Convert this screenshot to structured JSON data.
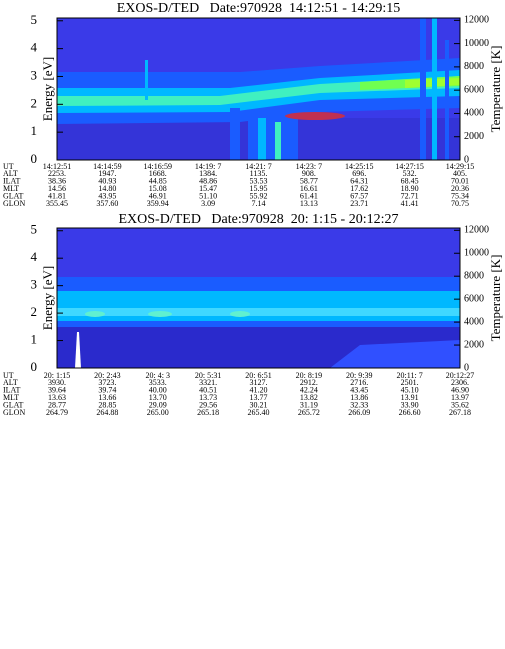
{
  "chart_data": [
    {
      "type": "spectrogram",
      "title": "EXOS-D/TED   Date:970928  14:12:51 - 14:29:15",
      "ylabel": "Energy [eV]",
      "y2label": "Temperature [K]",
      "ylim": [
        0,
        5.1
      ],
      "yticks": [
        0,
        1,
        2,
        3,
        4,
        5
      ],
      "y2lim": [
        0,
        12200
      ],
      "y2ticks": [
        0,
        2000,
        4000,
        6000,
        8000,
        10000,
        12000
      ],
      "table": {
        "row_labels": [
          "UT",
          "ALT",
          "ILAT",
          "MLT",
          "GLAT",
          "GLON"
        ],
        "rows": [
          [
            "14:12:51",
            "14:14:59",
            "14:16:59",
            "14:19: 7",
            "14:21: 7",
            "14:23: 7",
            "14:25:15",
            "14:27:15",
            "14:29:15"
          ],
          [
            "2253.",
            "1947.",
            "1668.",
            "1384.",
            "1135.",
            "908.",
            "696.",
            "532.",
            "405."
          ],
          [
            "38.36",
            "40.93",
            "44.85",
            "48.86",
            "53.53",
            "58.77",
            "64.31",
            "68.45",
            "70.01"
          ],
          [
            "14.56",
            "14.80",
            "15.08",
            "15.47",
            "15.95",
            "16.61",
            "17.62",
            "18.90",
            "20.36"
          ],
          [
            "41.81",
            "43.95",
            "46.91",
            "51.10",
            "55.92",
            "61.41",
            "67.57",
            "72.71",
            "75.34"
          ],
          [
            "355.45",
            "357.60",
            "359.94",
            "3.09",
            "7.14",
            "13.13",
            "23.71",
            "41.41",
            "70.75"
          ]
        ]
      }
    },
    {
      "type": "spectrogram",
      "title": "EXOS-D/TED   Date:970928  20: 1:15 - 20:12:27",
      "ylabel": "Energy [eV]",
      "y2label": "Temperature [K]",
      "ylim": [
        0,
        5.1
      ],
      "yticks": [
        0,
        1,
        2,
        3,
        4,
        5
      ],
      "y2lim": [
        0,
        12200
      ],
      "y2ticks": [
        0,
        2000,
        4000,
        6000,
        8000,
        10000,
        12000
      ],
      "table": {
        "row_labels": [
          "UT",
          "ALT",
          "ILAT",
          "MLT",
          "GLAT",
          "GLON"
        ],
        "rows": [
          [
            "20: 1:15",
            "20: 2:43",
            "20: 4: 3",
            "20: 5:31",
            "20: 6:51",
            "20: 8:19",
            "20: 9:39",
            "20:11: 7",
            "20:12:27"
          ],
          [
            "3930.",
            "3723.",
            "3533.",
            "3321.",
            "3127.",
            "2912.",
            "2716.",
            "2501.",
            "2306."
          ],
          [
            "39.64",
            "39.74",
            "40.00",
            "40.51",
            "41.20",
            "42.24",
            "43.45",
            "45.10",
            "46.90"
          ],
          [
            "13.63",
            "13.66",
            "13.70",
            "13.73",
            "13.77",
            "13.82",
            "13.86",
            "13.91",
            "13.97"
          ],
          [
            "28.77",
            "28.85",
            "29.09",
            "29.56",
            "30.21",
            "31.19",
            "32.33",
            "33.90",
            "35.62"
          ],
          [
            "264.79",
            "264.88",
            "265.00",
            "265.18",
            "265.40",
            "265.72",
            "266.09",
            "266.60",
            "267.18"
          ]
        ]
      }
    }
  ]
}
